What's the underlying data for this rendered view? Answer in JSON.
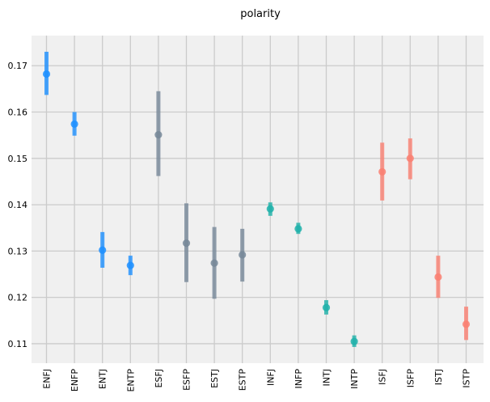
{
  "chart_data": {
    "type": "scatter",
    "title": "polarity",
    "xlabel": "",
    "ylabel": "",
    "categories": [
      "ENFJ",
      "ENFP",
      "ENTJ",
      "ENTP",
      "ESFJ",
      "ESFP",
      "ESTJ",
      "ESTP",
      "INFJ",
      "INFP",
      "INTJ",
      "INTP",
      "ISFJ",
      "ISFP",
      "ISTJ",
      "ISTP"
    ],
    "points": [
      {
        "category": "ENFJ",
        "value": 0.1682,
        "low": 0.1637,
        "high": 0.173,
        "color": "#1e90ff"
      },
      {
        "category": "ENFP",
        "value": 0.1574,
        "low": 0.1549,
        "high": 0.16,
        "color": "#1e90ff"
      },
      {
        "category": "ENTJ",
        "value": 0.1302,
        "low": 0.1264,
        "high": 0.1341,
        "color": "#1e90ff"
      },
      {
        "category": "ENTP",
        "value": 0.1269,
        "low": 0.1248,
        "high": 0.129,
        "color": "#1e90ff"
      },
      {
        "category": "ESFJ",
        "value": 0.1551,
        "low": 0.1462,
        "high": 0.1645,
        "color": "#778899"
      },
      {
        "category": "ESFP",
        "value": 0.1317,
        "low": 0.1233,
        "high": 0.1403,
        "color": "#778899"
      },
      {
        "category": "ESTJ",
        "value": 0.1274,
        "low": 0.1197,
        "high": 0.1352,
        "color": "#778899"
      },
      {
        "category": "ESTP",
        "value": 0.1292,
        "low": 0.1234,
        "high": 0.1348,
        "color": "#778899"
      },
      {
        "category": "INFJ",
        "value": 0.1391,
        "low": 0.1376,
        "high": 0.1405,
        "color": "#20b2aa"
      },
      {
        "category": "INFP",
        "value": 0.1348,
        "low": 0.1337,
        "high": 0.1361,
        "color": "#20b2aa"
      },
      {
        "category": "INTJ",
        "value": 0.1178,
        "low": 0.1163,
        "high": 0.1194,
        "color": "#20b2aa"
      },
      {
        "category": "INTP",
        "value": 0.1105,
        "low": 0.1093,
        "high": 0.1118,
        "color": "#20b2aa"
      },
      {
        "category": "ISFJ",
        "value": 0.1471,
        "low": 0.1409,
        "high": 0.1534,
        "color": "#fa8072"
      },
      {
        "category": "ISFP",
        "value": 0.15,
        "low": 0.1455,
        "high": 0.1543,
        "color": "#fa8072"
      },
      {
        "category": "ISTJ",
        "value": 0.1244,
        "low": 0.1199,
        "high": 0.129,
        "color": "#fa8072"
      },
      {
        "category": "ISTP",
        "value": 0.1142,
        "low": 0.1108,
        "high": 0.118,
        "color": "#fa8072"
      }
    ],
    "yticks": [
      "0.11",
      "0.12",
      "0.13",
      "0.14",
      "0.15",
      "0.16",
      "0.17"
    ],
    "ylim": [
      0.1058,
      0.1765
    ],
    "grid": true,
    "legend": "none"
  }
}
